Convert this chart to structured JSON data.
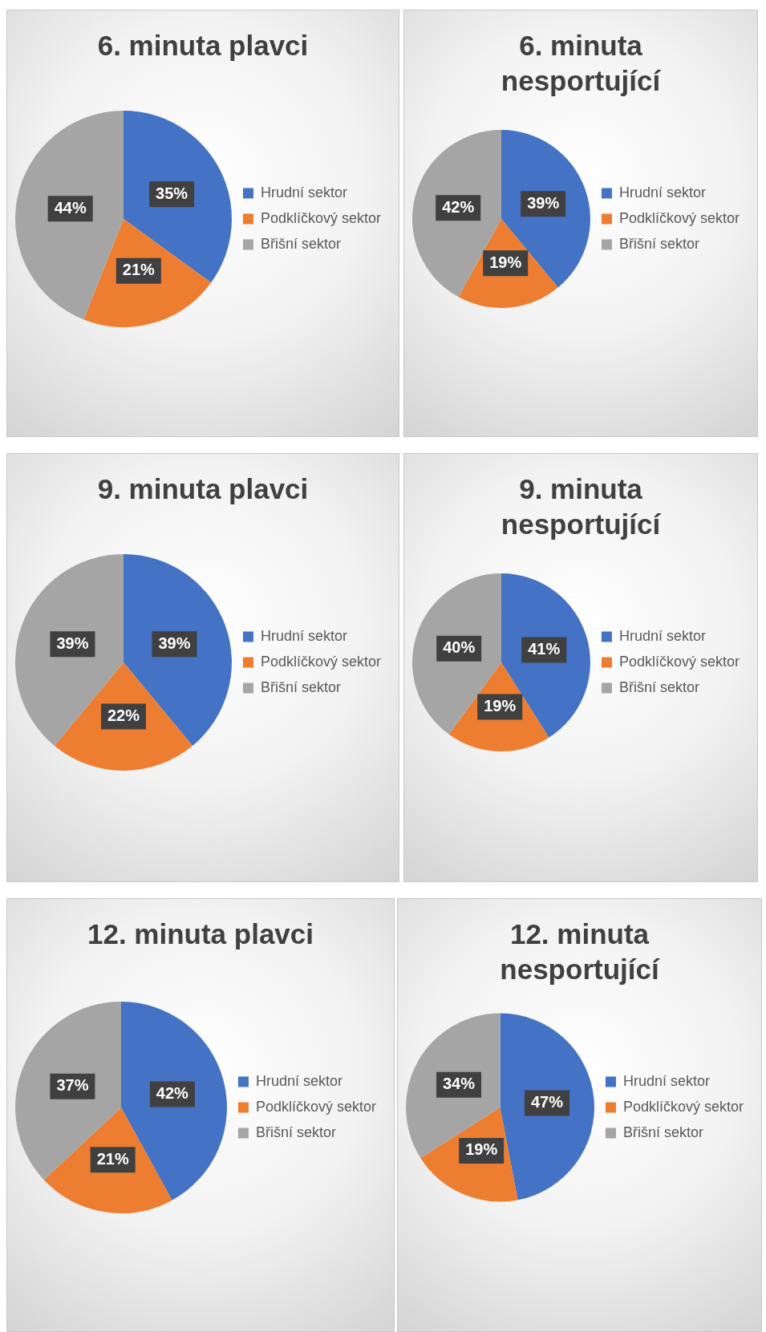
{
  "chart_data": [
    {
      "type": "pie",
      "title": "6. minuta plavci",
      "categories": [
        "Hrudní sektor",
        "Podklíčkový sektor",
        "Břišní sektor"
      ],
      "values": [
        35,
        21,
        44
      ],
      "value_labels": [
        "35%",
        "21%",
        "44%"
      ],
      "colors": [
        "#4472c4",
        "#ed7d31",
        "#a5a5a5"
      ],
      "legend": "right"
    },
    {
      "type": "pie",
      "title": "6. minuta nesportující",
      "categories": [
        "Hrudní sektor",
        "Podklíčkový sektor",
        "Břišní sektor"
      ],
      "values": [
        39,
        19,
        42
      ],
      "value_labels": [
        "39%",
        "19%",
        "42%"
      ],
      "colors": [
        "#4472c4",
        "#ed7d31",
        "#a5a5a5"
      ],
      "legend": "right"
    },
    {
      "type": "pie",
      "title": "9. minuta plavci",
      "categories": [
        "Hrudní sektor",
        "Podklíčkový sektor",
        "Břišní sektor"
      ],
      "values": [
        39,
        22,
        39
      ],
      "value_labels": [
        "39%",
        "22%",
        "39%"
      ],
      "colors": [
        "#4472c4",
        "#ed7d31",
        "#a5a5a5"
      ],
      "legend": "right"
    },
    {
      "type": "pie",
      "title": "9. minuta nesportující",
      "categories": [
        "Hrudní sektor",
        "Podklíčkový sektor",
        "Břišní sektor"
      ],
      "values": [
        41,
        19,
        40
      ],
      "value_labels": [
        "41%",
        "19%",
        "40%"
      ],
      "colors": [
        "#4472c4",
        "#ed7d31",
        "#a5a5a5"
      ],
      "legend": "right"
    },
    {
      "type": "pie",
      "title": "12. minuta plavci",
      "categories": [
        "Hrudní sektor",
        "Podklíčkový sektor",
        "Břišní sektor"
      ],
      "values": [
        42,
        21,
        37
      ],
      "value_labels": [
        "42%",
        "21%",
        "37%"
      ],
      "colors": [
        "#4472c4",
        "#ed7d31",
        "#a5a5a5"
      ],
      "legend": "right"
    },
    {
      "type": "pie",
      "title": "12. minuta nesportující",
      "categories": [
        "Hrudní sektor",
        "Podklíčkový sektor",
        "Břišní sektor"
      ],
      "values": [
        47,
        19,
        34
      ],
      "value_labels": [
        "47%",
        "19%",
        "34%"
      ],
      "colors": [
        "#4472c4",
        "#ed7d31",
        "#a5a5a5"
      ],
      "legend": "right"
    }
  ]
}
